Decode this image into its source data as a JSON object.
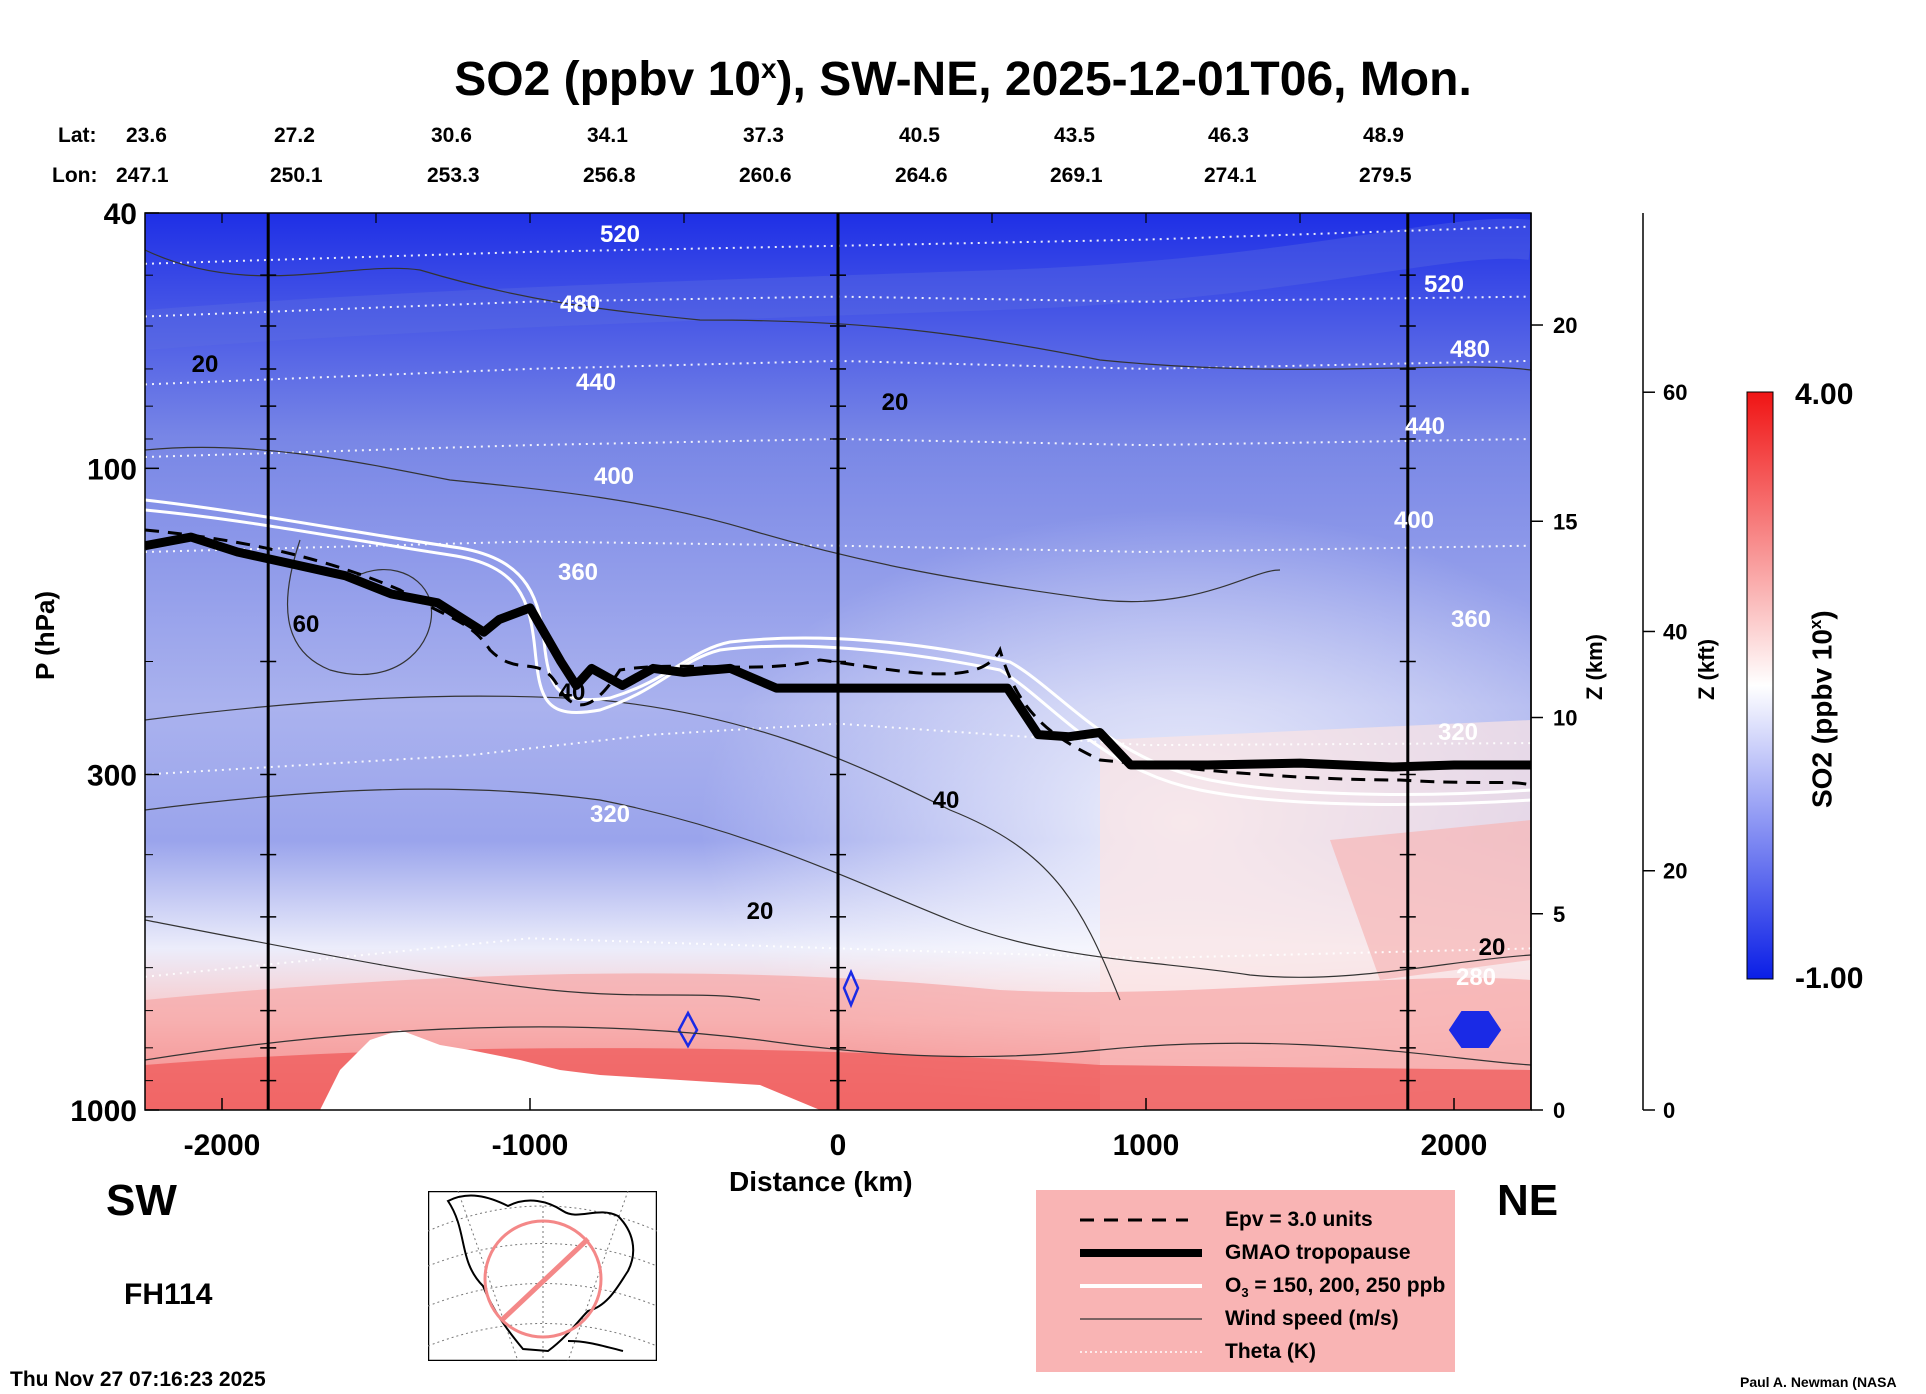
{
  "title": {
    "main": "SO2 (ppbv 10",
    "sup": "x",
    "rest": "), SW-NE, 2025-12-01T06, Mon."
  },
  "coords": {
    "lat_label": "Lat:",
    "lon_label": "Lon:",
    "lat": [
      "23.6",
      "27.2",
      "30.6",
      "34.1",
      "37.3",
      "40.5",
      "43.5",
      "46.3",
      "48.9"
    ],
    "lon": [
      "247.1",
      "250.1",
      "253.3",
      "256.8",
      "260.6",
      "264.6",
      "269.1",
      "274.1",
      "279.5"
    ]
  },
  "labels": {
    "sw": "SW",
    "ne": "NE",
    "forecast_hour": "FH114",
    "timestamp": "Thu Nov 27 07:16:23 2025",
    "credit": "Paul A. Newman (NASA"
  },
  "legend": {
    "items": [
      {
        "label": "Epv = 3.0 units",
        "style": "dashed"
      },
      {
        "label": "GMAO tropopause",
        "style": "thick"
      },
      {
        "label": "O",
        "sub": "3",
        "rest": " = 150, 200, 250 ppb",
        "style": "white"
      },
      {
        "label": "Wind speed (m/s)",
        "style": "thin"
      },
      {
        "label": "Theta (K)",
        "style": "dotted"
      }
    ],
    "bg": "#f9b4b4"
  },
  "chart_data": {
    "type": "heatmap",
    "title": "SO2 (ppbv 10^x), SW-NE, 2025-12-01T06, Mon.",
    "xlabel": "Distance (km)",
    "ylabel": "P (hPa)",
    "y2label": "Z (km)",
    "y3label": "Z (kft)",
    "xlim": [
      -2250,
      2250
    ],
    "ylim": [
      1000,
      40
    ],
    "x_ticks": [
      -2000,
      -1000,
      0,
      1000,
      2000
    ],
    "y_ticks": [
      40,
      100,
      300,
      1000
    ],
    "z_km_ticks": [
      0,
      5,
      10,
      15,
      20
    ],
    "z_kft_ticks": [
      0,
      20,
      40,
      60
    ],
    "colorbar": {
      "label": "SO2 (ppbv 10",
      "label_sup": "x",
      "label_end": ")",
      "min": -1.0,
      "max": 4.0,
      "min_label": "-1.00",
      "max_label": "4.00",
      "colors": [
        "#0a1ee6",
        "#ffffff",
        "#f01414"
      ]
    },
    "vertical_lines_km": [
      -1850,
      0,
      1850
    ],
    "tropopause": {
      "x": [
        -2250,
        -2100,
        -1950,
        -1800,
        -1600,
        -1450,
        -1300,
        -1150,
        -1100,
        -1000,
        -900,
        -850,
        -800,
        -700,
        -600,
        -500,
        -350,
        -200,
        0,
        300,
        550,
        650,
        750,
        850,
        950,
        1200,
        1500,
        1800,
        2000,
        2250
      ],
      "p": [
        132,
        128,
        135,
        140,
        147,
        157,
        162,
        180,
        172,
        165,
        200,
        218,
        205,
        218,
        205,
        208,
        205,
        220,
        220,
        220,
        220,
        260,
        262,
        258,
        290,
        290,
        288,
        292,
        290,
        290
      ]
    },
    "theta_contours": [
      {
        "label": "520",
        "level": 520
      },
      {
        "label": "480",
        "level": 480
      },
      {
        "label": "440",
        "level": 440
      },
      {
        "label": "400",
        "level": 400
      },
      {
        "label": "360",
        "level": 360
      },
      {
        "label": "320",
        "level": 320
      },
      {
        "label": "280",
        "level": 280
      }
    ],
    "wind_labels": [
      "20",
      "20",
      "60",
      "40",
      "40",
      "20",
      "20"
    ]
  }
}
